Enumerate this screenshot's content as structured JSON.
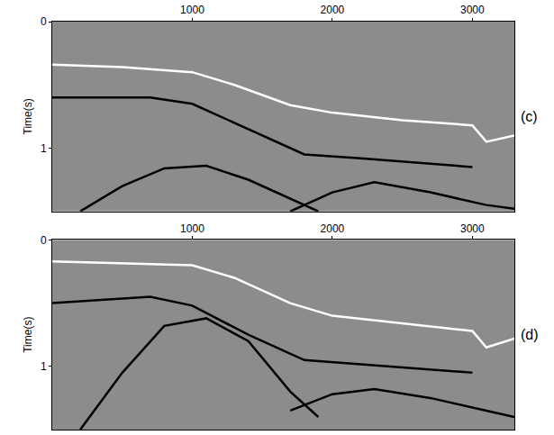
{
  "chart_data": [
    {
      "type": "line",
      "label": "(c)",
      "y_label": "Time(s)",
      "xlim": [
        0,
        3300
      ],
      "ylim": [
        1.5,
        0
      ],
      "xticks": [
        1000,
        2000,
        3000
      ],
      "yticks": [
        0,
        1
      ],
      "series": [
        {
          "color": "#ffffff",
          "line_style": "solid",
          "x": [
            0,
            500,
            1000,
            1300,
            1700,
            2000,
            2500,
            3000,
            3100,
            3300
          ],
          "values": [
            0.34,
            0.36,
            0.4,
            0.5,
            0.66,
            0.72,
            0.78,
            0.82,
            0.95,
            0.9
          ]
        },
        {
          "color": "#000000",
          "line_style": "solid",
          "x": [
            0,
            700,
            1000,
            1400,
            1800,
            2200,
            3000
          ],
          "values": [
            0.6,
            0.6,
            0.65,
            0.85,
            1.05,
            1.08,
            1.15
          ]
        },
        {
          "color": "#000000",
          "line_style": "solid",
          "x": [
            200,
            500,
            800,
            1100,
            1400,
            1700,
            1900
          ],
          "values": [
            1.5,
            1.3,
            1.16,
            1.14,
            1.25,
            1.4,
            1.5
          ]
        },
        {
          "color": "#000000",
          "line_style": "solid",
          "x": [
            1700,
            2000,
            2300,
            2700,
            3100,
            3300
          ],
          "values": [
            1.5,
            1.35,
            1.27,
            1.35,
            1.45,
            1.48
          ]
        }
      ]
    },
    {
      "type": "line",
      "label": "(d)",
      "y_label": "Time(s)",
      "xlim": [
        0,
        3300
      ],
      "ylim": [
        1.5,
        0
      ],
      "xticks": [
        1000,
        2000,
        3000
      ],
      "yticks": [
        0,
        1
      ],
      "series": [
        {
          "color": "#ffffff",
          "line_style": "solid",
          "x": [
            0,
            1000,
            1300,
            1700,
            2000,
            3000,
            3100,
            3300
          ],
          "values": [
            0.17,
            0.2,
            0.3,
            0.5,
            0.6,
            0.72,
            0.85,
            0.78
          ]
        },
        {
          "color": "#000000",
          "line_style": "solid",
          "x": [
            0,
            700,
            1000,
            1400,
            1800,
            3000
          ],
          "values": [
            0.5,
            0.45,
            0.52,
            0.75,
            0.95,
            1.05
          ]
        },
        {
          "color": "#000000",
          "line_style": "solid",
          "x": [
            200,
            500,
            800,
            1100,
            1400,
            1700,
            1900
          ],
          "values": [
            1.5,
            1.05,
            0.68,
            0.62,
            0.8,
            1.2,
            1.4
          ]
        },
        {
          "color": "#000000",
          "line_style": "solid",
          "x": [
            1700,
            2000,
            2300,
            2700,
            3100,
            3300
          ],
          "values": [
            1.35,
            1.22,
            1.18,
            1.25,
            1.35,
            1.4
          ]
        }
      ]
    }
  ]
}
